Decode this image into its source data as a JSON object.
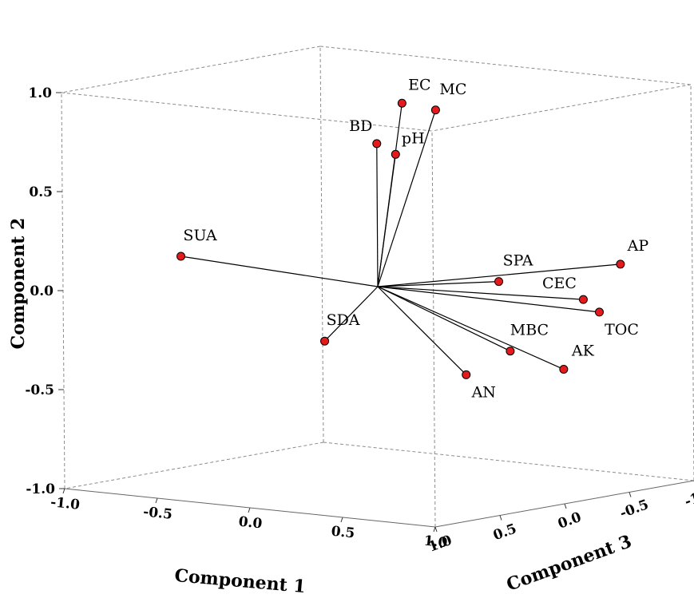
{
  "chart_data": {
    "type": "scatter",
    "xlabel": "Component 1",
    "ylabel": "Component 2",
    "zlabel": "Component 3",
    "xlim": [
      -1.0,
      1.0
    ],
    "ylim": [
      -1.0,
      1.0
    ],
    "zlim": [
      -1.0,
      1.0
    ],
    "x_ticks": [
      "-1.0",
      "-0.5",
      "0.0",
      "0.5",
      "1.0"
    ],
    "y_ticks": [
      "-1.0",
      "-0.5",
      "0.0",
      "0.5",
      "1.0"
    ],
    "z_ticks": [
      "1.0",
      "0.5",
      "0.0",
      "-0.5",
      "-1.0"
    ],
    "points": [
      {
        "label": "MC",
        "x": 0.46,
        "y": 0.96,
        "z": 0.2
      },
      {
        "label": "EC",
        "x": -0.05,
        "y": 0.89,
        "z": -0.27
      },
      {
        "label": "BD",
        "x": -0.16,
        "y": 0.68,
        "z": -0.23
      },
      {
        "label": "pH",
        "x": -0.08,
        "y": 0.63,
        "z": -0.26
      },
      {
        "label": "SUA",
        "x": -0.95,
        "y": 0.08,
        "z": 0.16
      },
      {
        "label": "SPA",
        "x": 0.43,
        "y": 0.03,
        "z": -0.32
      },
      {
        "label": "AP",
        "x": 0.78,
        "y": 0.1,
        "z": -0.76
      },
      {
        "label": "CEC",
        "x": 0.76,
        "y": -0.05,
        "z": -0.5
      },
      {
        "label": "TOC",
        "x": 0.79,
        "y": -0.12,
        "z": -0.58
      },
      {
        "label": "SDA",
        "x": -0.24,
        "y": -0.29,
        "z": 0.07
      },
      {
        "label": "MBC",
        "x": 0.51,
        "y": -0.31,
        "z": -0.29
      },
      {
        "label": "AK",
        "x": 0.7,
        "y": -0.4,
        "z": -0.43
      },
      {
        "label": "AN",
        "x": 0.32,
        "y": -0.44,
        "z": -0.22
      }
    ]
  }
}
